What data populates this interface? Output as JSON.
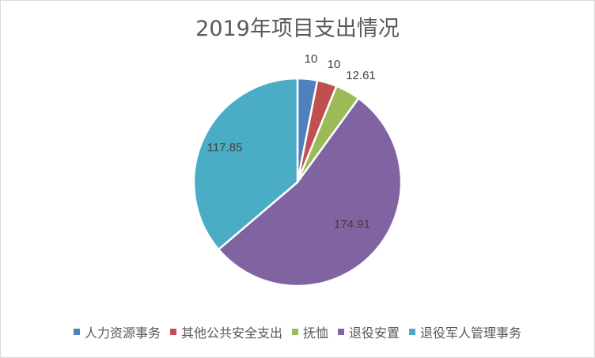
{
  "chart_data": {
    "type": "pie",
    "title": "2019年项目支出情况",
    "categories": [
      "人力资源事务",
      "其他公共安全支出",
      "抚恤",
      "退役安置",
      "退役军人管理事务"
    ],
    "values": [
      10,
      10,
      12.61,
      174.91,
      117.85
    ],
    "data_labels": [
      "10",
      "10",
      "12.61",
      "174.91",
      "117.85"
    ],
    "colors": [
      "#4f81bd",
      "#c0504d",
      "#9bbb59",
      "#8064a2",
      "#4bacc6"
    ],
    "start_angle": "top",
    "direction": "clockwise",
    "legend_position": "bottom"
  }
}
